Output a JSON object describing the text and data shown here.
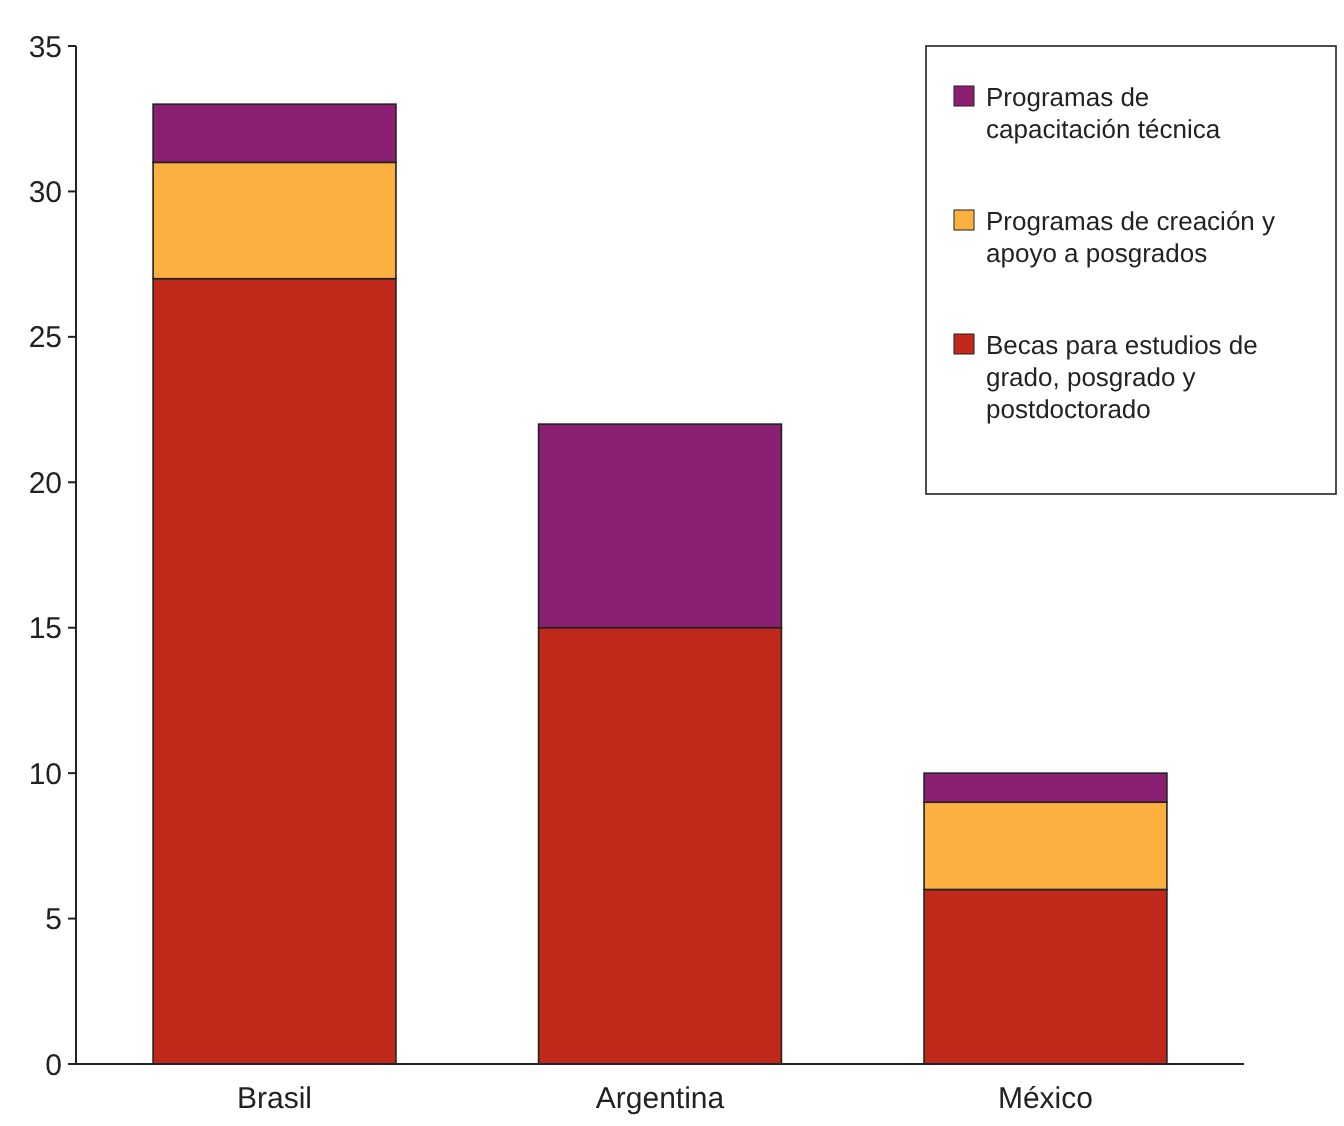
{
  "chart_data": {
    "type": "bar",
    "stacked": true,
    "categories": [
      "Brasil",
      "Argentina",
      "México"
    ],
    "series": [
      {
        "name": "Becas para estudios de grado, posgrado y postdoctorado",
        "color": "#c0291a",
        "values": [
          27,
          15,
          6
        ]
      },
      {
        "name": "Programas de creación y apoyo a posgrados",
        "color": "#fbb040",
        "values": [
          4,
          null,
          3
        ]
      },
      {
        "name": "Programas de capacitación técnica",
        "color": "#8b1f72",
        "values": [
          2,
          7,
          1
        ]
      }
    ],
    "ylim": [
      0,
      35
    ],
    "yticks": [
      0,
      5,
      10,
      15,
      20,
      25,
      30,
      35
    ],
    "grid": false,
    "legend": "top right"
  }
}
